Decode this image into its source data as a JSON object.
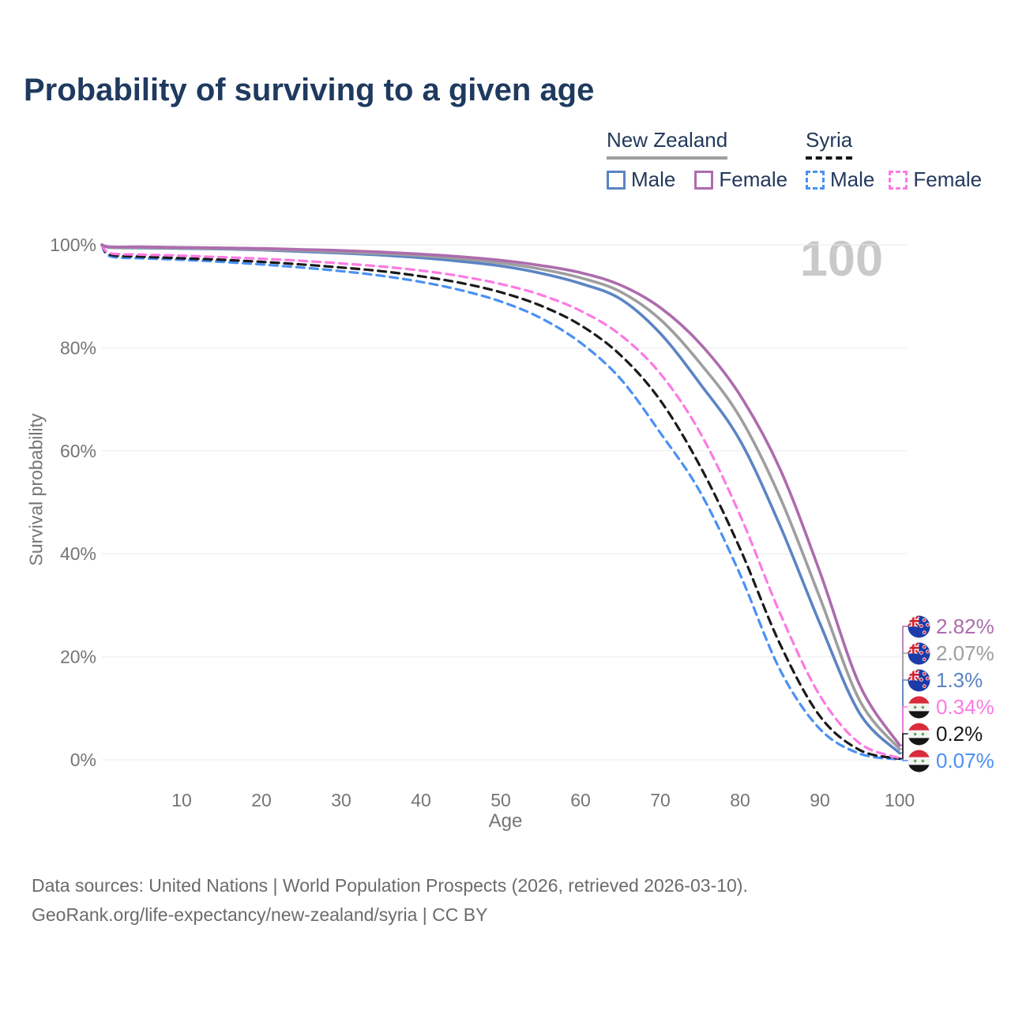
{
  "page": {
    "title": "Probability of surviving to a given age",
    "watermark_age": "100",
    "footer_line1": "Data sources: United Nations | World Population Prospects (2026, retrieved 2026-03-10).",
    "footer_line2": "GeoRank.org/life-expectancy/new-zealand/syria | CC BY"
  },
  "legend": {
    "groups": [
      {
        "label": "New Zealand",
        "line_style": "solid",
        "underline_color": "#9e9e9e",
        "items": [
          {
            "label": "Male",
            "color": "#5b84c4",
            "dashed": false
          },
          {
            "label": "Female",
            "color": "#ad6cad",
            "dashed": false
          }
        ]
      },
      {
        "label": "Syria",
        "line_style": "dashed",
        "underline_color": "#161616",
        "items": [
          {
            "label": "Male",
            "color": "#4a90f4",
            "dashed": true
          },
          {
            "label": "Female",
            "color": "#fc7ae3",
            "dashed": true
          }
        ]
      }
    ]
  },
  "chart_data": {
    "type": "line",
    "title": "Probability of surviving to a given age",
    "xlabel": "Age",
    "ylabel": "Survival probability",
    "xlim": [
      0,
      101
    ],
    "ylim": [
      0,
      100
    ],
    "grid": true,
    "x_ticks": [
      10,
      20,
      30,
      40,
      50,
      60,
      70,
      80,
      90,
      100
    ],
    "y_ticks": [
      {
        "value": 0,
        "label": "0%"
      },
      {
        "value": 20,
        "label": "20%"
      },
      {
        "value": 40,
        "label": "40%"
      },
      {
        "value": 60,
        "label": "60%"
      },
      {
        "value": 80,
        "label": "80%"
      },
      {
        "value": 100,
        "label": "100%"
      }
    ],
    "x": [
      0,
      1,
      5,
      10,
      15,
      20,
      25,
      30,
      35,
      40,
      45,
      50,
      55,
      60,
      65,
      70,
      75,
      80,
      85,
      90,
      95,
      100
    ],
    "series": [
      {
        "name": "New Zealand — Female",
        "country": "New Zealand",
        "sex": "Female",
        "color": "#ad6cad",
        "dashed": false,
        "flag": "new-zealand",
        "end_label": "2.82%",
        "end_value_pct": 2.82,
        "values": [
          100,
          99.6,
          99.6,
          99.5,
          99.4,
          99.3,
          99.1,
          98.9,
          98.6,
          98.2,
          97.7,
          97.0,
          96.0,
          94.6,
          92.2,
          87.8,
          80.8,
          70.8,
          56.5,
          36.5,
          14.5,
          2.82
        ]
      },
      {
        "name": "New Zealand — Both sexes",
        "country": "New Zealand",
        "sex": "Both",
        "color": "#9e9e9e",
        "dashed": false,
        "flag": "new-zealand",
        "end_label": "2.07%",
        "end_value_pct": 2.07,
        "values": [
          100,
          99.5,
          99.5,
          99.4,
          99.3,
          99.1,
          98.9,
          98.6,
          98.3,
          97.9,
          97.3,
          96.5,
          95.3,
          93.6,
          90.9,
          85.5,
          77.0,
          66.5,
          51.0,
          31.5,
          11.5,
          2.07
        ]
      },
      {
        "name": "New Zealand — Male",
        "country": "New Zealand",
        "sex": "Male",
        "color": "#5b84c4",
        "dashed": false,
        "flag": "new-zealand",
        "end_label": "1.3%",
        "end_value_pct": 1.3,
        "values": [
          100,
          99.5,
          99.4,
          99.3,
          99.2,
          99.0,
          98.7,
          98.4,
          98.0,
          97.5,
          96.8,
          95.9,
          94.5,
          92.5,
          89.5,
          82.8,
          73.0,
          62.0,
          45.5,
          26.5,
          9.0,
          1.3
        ]
      },
      {
        "name": "Syria — Female",
        "country": "Syria",
        "sex": "Female",
        "color": "#fc7ae3",
        "dashed": true,
        "flag": "syria",
        "end_label": "0.34%",
        "end_value_pct": 0.34,
        "values": [
          100,
          98.4,
          98.1,
          97.9,
          97.6,
          97.3,
          96.9,
          96.4,
          95.8,
          95.0,
          93.9,
          92.4,
          90.3,
          87.2,
          82.5,
          75.0,
          63.5,
          47.5,
          28.5,
          12.5,
          3.2,
          0.34
        ]
      },
      {
        "name": "Syria — Both sexes",
        "country": "Syria",
        "sex": "Both",
        "color": "#1a1a1a",
        "dashed": true,
        "flag": "syria",
        "end_label": "0.2%",
        "end_value_pct": 0.2,
        "values": [
          100,
          98.1,
          97.7,
          97.4,
          97.1,
          96.7,
          96.2,
          95.6,
          94.9,
          93.9,
          92.6,
          90.8,
          88.2,
          84.4,
          78.6,
          69.8,
          57.0,
          41.0,
          22.5,
          8.5,
          1.9,
          0.2
        ]
      },
      {
        "name": "Syria — Male",
        "country": "Syria",
        "sex": "Male",
        "color": "#4a90f4",
        "dashed": true,
        "flag": "syria",
        "end_label": "0.07%",
        "end_value_pct": 0.07,
        "values": [
          100,
          97.8,
          97.4,
          97.1,
          96.7,
          96.2,
          95.6,
          94.9,
          94.0,
          92.8,
          91.2,
          89.0,
          85.8,
          81.0,
          74.0,
          63.5,
          52.0,
          36.0,
          17.5,
          6.0,
          1.2,
          0.07
        ]
      }
    ]
  }
}
